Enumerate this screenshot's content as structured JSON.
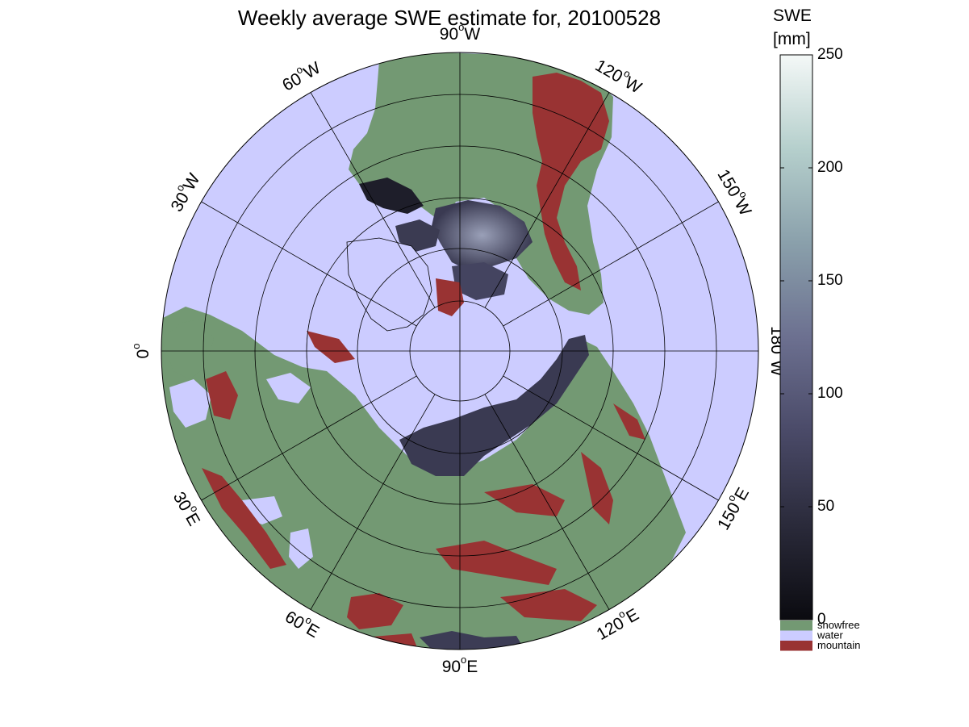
{
  "title": "Weekly average SWE estimate for, 20100528",
  "colorbar": {
    "label_line1": "SWE",
    "label_line2": "[mm]",
    "ticks": [
      "0",
      "50",
      "100",
      "150",
      "200",
      "250"
    ],
    "range": [
      0,
      250
    ],
    "gradient_colors": [
      "#0b0b10",
      "#2a2a3a",
      "#4a4a68",
      "#6c7090",
      "#8aa0ab",
      "#b5cfcc",
      "#f4f8f7"
    ],
    "categories": [
      {
        "label": "snowfree",
        "color": "#739973"
      },
      {
        "label": "water",
        "color": "#ccccff"
      },
      {
        "label": "mountain",
        "color": "#993333"
      }
    ]
  },
  "map": {
    "projection": "north-polar-stereographic",
    "longitude_labels": [
      {
        "deg": "90",
        "hemi": "W"
      },
      {
        "deg": "120",
        "hemi": "W"
      },
      {
        "deg": "150",
        "hemi": "W"
      },
      {
        "deg": "180",
        "hemi": "W"
      },
      {
        "deg": "150",
        "hemi": "E"
      },
      {
        "deg": "120",
        "hemi": "E"
      },
      {
        "deg": "90",
        "hemi": "E"
      },
      {
        "deg": "60",
        "hemi": "E"
      },
      {
        "deg": "30",
        "hemi": "E"
      },
      {
        "deg": "0",
        "hemi": ""
      },
      {
        "deg": "30",
        "hemi": "W"
      },
      {
        "deg": "60",
        "hemi": "W"
      }
    ],
    "colors": {
      "water": "#ccccff",
      "snowfree": "#739973",
      "mountain": "#993333",
      "snow_dark": "#2b2b3d",
      "snow_mid": "#555570",
      "grid": "#000000"
    }
  }
}
